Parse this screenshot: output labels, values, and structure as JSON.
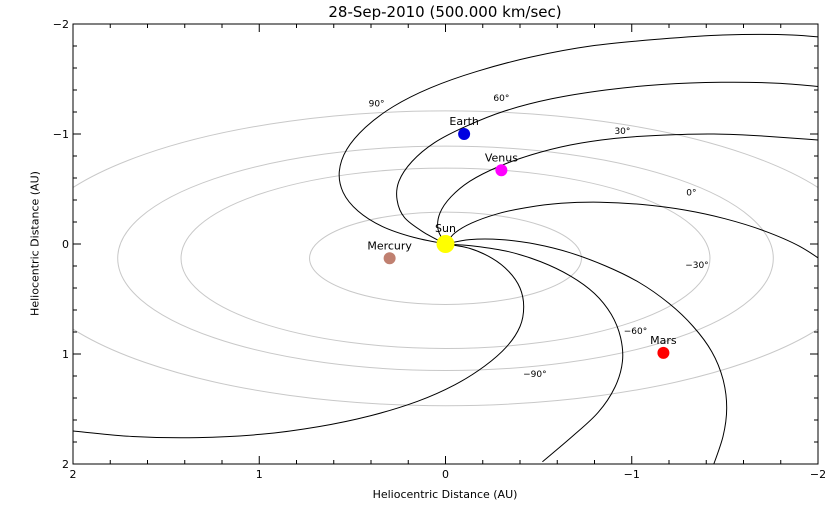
{
  "chart_data": {
    "type": "scatter",
    "title": "28-Sep-2010 (500.000 km/sec)",
    "xlabel": "Heliocentric Distance (AU)",
    "ylabel": "Heliocentric Distance (AU)",
    "xlim": [
      2,
      -2
    ],
    "ylim": [
      -2,
      2
    ],
    "x_ticks": [
      {
        "value": 2,
        "label": "2"
      },
      {
        "value": 1,
        "label": "1"
      },
      {
        "value": 0,
        "label": "0"
      },
      {
        "value": -1,
        "label": "−1"
      },
      {
        "value": -2,
        "label": "−2"
      }
    ],
    "y_ticks": [
      {
        "value": -2,
        "label": "−2"
      },
      {
        "value": -1,
        "label": "−1"
      },
      {
        "value": 0,
        "label": "0"
      },
      {
        "value": 1,
        "label": "1"
      },
      {
        "value": 2,
        "label": "2"
      }
    ],
    "bodies": [
      {
        "name": "Sun",
        "x": 0.0,
        "y": 0.0,
        "color": "#ffff00",
        "size": 9
      },
      {
        "name": "Mercury",
        "x": 0.3,
        "y": 0.13,
        "color": "#c08070",
        "size": 6
      },
      {
        "name": "Venus",
        "x": -0.3,
        "y": -0.67,
        "color": "#ff00ff",
        "size": 6
      },
      {
        "name": "Earth",
        "x": -0.1,
        "y": -1.0,
        "color": "#0000e0",
        "size": 6
      },
      {
        "name": "Mars",
        "x": -1.17,
        "y": 0.99,
        "color": "#ff0000",
        "size": 6
      }
    ],
    "orbits": [
      {
        "body": "Mercury",
        "cx": 0.0,
        "cy": 0.13,
        "rx": 0.73,
        "ry": 0.42
      },
      {
        "body": "Venus",
        "cx": 0.0,
        "cy": 0.13,
        "rx": 1.42,
        "ry": 0.82
      },
      {
        "body": "Earth",
        "cx": 0.0,
        "cy": 0.13,
        "rx": 1.76,
        "ry": 1.02
      },
      {
        "body": "Mars",
        "cx": 0.0,
        "cy": 0.13,
        "rx": 2.28,
        "ry": 1.34
      }
    ],
    "spiral_lines": [
      {
        "label": "90°",
        "lx": 0.37,
        "ly": -1.25,
        "points": [
          [
            0.0,
            0.0
          ],
          [
            0.17,
            -0.06
          ],
          [
            0.34,
            -0.16
          ],
          [
            0.47,
            -0.3
          ],
          [
            0.55,
            -0.47
          ],
          [
            0.57,
            -0.66
          ],
          [
            0.53,
            -0.86
          ],
          [
            0.43,
            -1.06
          ],
          [
            0.28,
            -1.25
          ],
          [
            0.08,
            -1.42
          ],
          [
            -0.17,
            -1.57
          ],
          [
            -0.46,
            -1.7
          ],
          [
            -0.78,
            -1.8
          ],
          [
            -1.13,
            -1.86
          ],
          [
            -1.49,
            -1.9
          ],
          [
            -1.86,
            -1.9
          ],
          [
            -2.2,
            -1.85
          ]
        ]
      },
      {
        "label": "60°",
        "lx": -0.3,
        "ly": -1.3,
        "points": [
          [
            0.0,
            0.0
          ],
          [
            0.12,
            -0.11
          ],
          [
            0.22,
            -0.24
          ],
          [
            0.26,
            -0.4
          ],
          [
            0.25,
            -0.57
          ],
          [
            0.18,
            -0.75
          ],
          [
            0.06,
            -0.92
          ],
          [
            -0.11,
            -1.07
          ],
          [
            -0.32,
            -1.21
          ],
          [
            -0.57,
            -1.32
          ],
          [
            -0.86,
            -1.4
          ],
          [
            -1.16,
            -1.45
          ],
          [
            -1.48,
            -1.47
          ],
          [
            -1.8,
            -1.46
          ],
          [
            -2.2,
            -1.4
          ]
        ]
      },
      {
        "label": "30°",
        "lx": -0.95,
        "ly": -1.0,
        "points": [
          [
            0.0,
            0.0
          ],
          [
            0.04,
            -0.13
          ],
          [
            0.03,
            -0.28
          ],
          [
            -0.03,
            -0.43
          ],
          [
            -0.13,
            -0.57
          ],
          [
            -0.28,
            -0.7
          ],
          [
            -0.46,
            -0.81
          ],
          [
            -0.67,
            -0.9
          ],
          [
            -0.91,
            -0.96
          ],
          [
            -1.17,
            -0.99
          ],
          [
            -1.44,
            -1.0
          ],
          [
            -1.72,
            -0.98
          ],
          [
            -2.2,
            -0.92
          ]
        ]
      },
      {
        "label": "0°",
        "lx": -1.32,
        "ly": -0.44,
        "points": [
          [
            0.0,
            0.0
          ],
          [
            -0.05,
            -0.1
          ],
          [
            -0.14,
            -0.19
          ],
          [
            -0.27,
            -0.27
          ],
          [
            -0.43,
            -0.33
          ],
          [
            -0.62,
            -0.37
          ],
          [
            -0.83,
            -0.38
          ],
          [
            -1.05,
            -0.36
          ],
          [
            -1.28,
            -0.31
          ],
          [
            -1.5,
            -0.23
          ],
          [
            -1.71,
            -0.12
          ],
          [
            -1.9,
            0.02
          ],
          [
            -2.06,
            0.2
          ],
          [
            -2.2,
            0.4
          ]
        ]
      },
      {
        "label": "−30°",
        "lx": -1.35,
        "ly": 0.22,
        "points": [
          [
            0.0,
            0.0
          ],
          [
            -0.13,
            -0.04
          ],
          [
            -0.3,
            -0.04
          ],
          [
            -0.48,
            0.0
          ],
          [
            -0.67,
            0.08
          ],
          [
            -0.86,
            0.2
          ],
          [
            -1.04,
            0.35
          ],
          [
            -1.2,
            0.54
          ],
          [
            -1.33,
            0.75
          ],
          [
            -1.43,
            0.98
          ],
          [
            -1.49,
            1.23
          ],
          [
            -1.51,
            1.49
          ],
          [
            -1.49,
            1.75
          ],
          [
            -1.43,
            2.05
          ]
        ]
      },
      {
        "label": "−60°",
        "lx": -1.02,
        "ly": 0.82,
        "points": [
          [
            0.0,
            0.0
          ],
          [
            -0.16,
            0.02
          ],
          [
            -0.34,
            0.07
          ],
          [
            -0.51,
            0.16
          ],
          [
            -0.67,
            0.29
          ],
          [
            -0.8,
            0.45
          ],
          [
            -0.89,
            0.64
          ],
          [
            -0.94,
            0.85
          ],
          [
            -0.95,
            1.07
          ],
          [
            -0.91,
            1.3
          ],
          [
            -0.82,
            1.53
          ],
          [
            -0.68,
            1.75
          ],
          [
            -0.52,
            1.98
          ]
        ]
      },
      {
        "label": "−90°",
        "lx": -0.48,
        "ly": 1.21,
        "points": [
          [
            0.0,
            0.0
          ],
          [
            -0.13,
            0.04
          ],
          [
            -0.25,
            0.13
          ],
          [
            -0.34,
            0.25
          ],
          [
            -0.4,
            0.4
          ],
          [
            -0.42,
            0.57
          ],
          [
            -0.4,
            0.75
          ],
          [
            -0.33,
            0.93
          ],
          [
            -0.21,
            1.11
          ],
          [
            -0.05,
            1.28
          ],
          [
            0.15,
            1.43
          ],
          [
            0.4,
            1.56
          ],
          [
            0.68,
            1.66
          ],
          [
            0.99,
            1.73
          ],
          [
            1.33,
            1.76
          ],
          [
            1.68,
            1.75
          ],
          [
            2.0,
            1.7
          ],
          [
            2.2,
            1.66
          ]
        ]
      }
    ],
    "colors": {
      "orbit": "#c8c8c8",
      "spiral": "#000000",
      "axes": "#000000"
    }
  }
}
